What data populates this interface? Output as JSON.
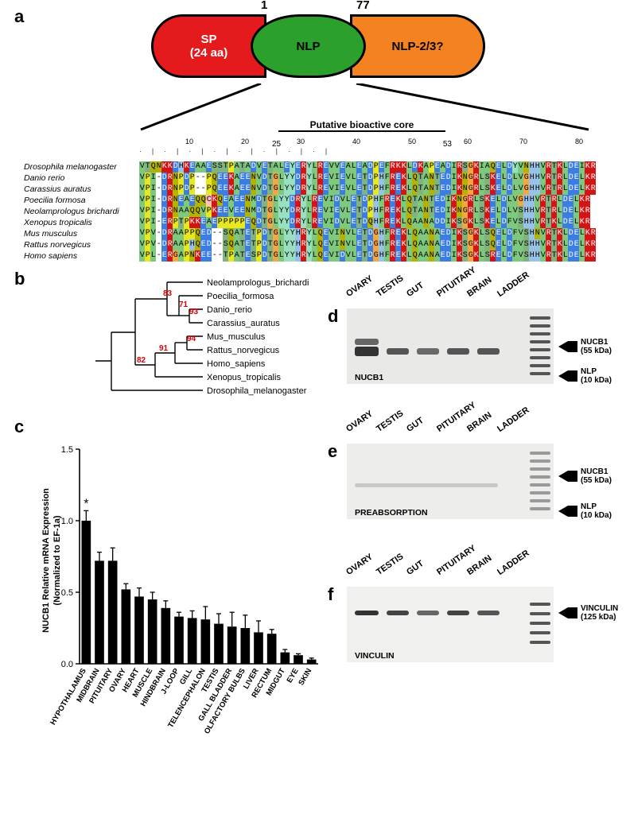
{
  "panel_a": {
    "label": "a",
    "segments": {
      "sp": {
        "title": "SP",
        "subtitle": "(24 aa)",
        "color": "#e41a1c"
      },
      "nlp": {
        "title": "NLP",
        "color": "#2ca02c"
      },
      "nlp23": {
        "title": "NLP-2/3?",
        "color": "#f58220"
      }
    },
    "positions": {
      "start": "1",
      "end": "77"
    },
    "bioactive": {
      "title": "Putative bioactive core",
      "start": "25",
      "end": "53"
    },
    "ruler": [
      10,
      20,
      30,
      40,
      50,
      60,
      70,
      80
    ],
    "species": [
      "Drosophila melanogaster",
      "Danio rerio",
      "Carassius auratus",
      "Poecilia formosa",
      "Neolamprologus brichardi",
      "Xenopus tropicalis",
      "Mus musculus",
      "Rattus norvegicus",
      "Homo sapiens"
    ],
    "sequences": [
      "VTQNKKDHKEAAESSTPATADVETALEYERYLREVVEALEADPEFRKKLDKAPEADIRSGKIAQELDYVNHHVRTKLDEIKR",
      "VPI-DRNPDP--PQEEKAEENVDTGLYYDRYLREVIEVLETDPHFREKLQTANTEDIKNGRLSKELDLVGHHVRTRLDELKR",
      "VPI-DRNPDP--PQEEKAEENVDTGLYYDRYLREVIEVLETDPHFREKLQTANTEDIKNGRLSKELDLVGHHVRTRLDELKR",
      "VPI-DRNEAEQQCKQEAEENMDTGLYYDRYLREVIDVLETDPHFREKLQTANTEDIKNGRLSKELDLVGHHVRTRLDELKR",
      "VPI-DRNAAQQVPKEEVEENMDTGLYYDRYLREVIEVLETDPHFREKLQTANTEDIKNGRLSKELDLVSHHVRTRLDELKR",
      "VPI-ERPTPKKEAEPPPPPEQDTGLYYDRYLREVIDVLETDQHFREKLQAANADDIKSGKLSKELDFVSHHVRTKLDELKR",
      "VPV-DRAAPPQED--SQATETPDTGLYYHRYLQEVINVLETDGHFREKLQAANAEDIKSGKLSQELDFVSHNVRTKLDELKR",
      "VPV-DRAAPHQED--SQATETPDTGLYYHRYLQEVINVLETDGHFREKLQAANAEDIKSGKLSQELDFVSHHVRTKLDELKR",
      "VPL-ERGAPNKEE--TPATESPDTGLYYHRYLQEVIDVLETDGHFREKLQAANAEDIKSGKLSRELDFVSHHVRTKLDELKR"
    ]
  },
  "panel_b": {
    "label": "b",
    "taxa": [
      "Neolamprologus_brichardi",
      "Poecilia_formosa",
      "Danio_rerio",
      "Carassius_auratus",
      "Mus_musculus",
      "Rattus_norvegicus",
      "Homo_sapiens",
      "Xenopus_tropicalis",
      "Drosophila_melanogaster"
    ],
    "bootstraps": {
      "n1": "83",
      "n2": "71",
      "n3": "93",
      "n4": "82",
      "n5": "91",
      "n6": "94"
    }
  },
  "panel_c": {
    "label": "c",
    "ylabel_line1": "NUCB1 Relative mRNA Expression",
    "ylabel_line2": "(Normalized to EF-1a)",
    "ylim": [
      0,
      1.5
    ],
    "ytick_step": 0.5,
    "categories": [
      "HYPOTHALAMUS",
      "MIDBRAIN",
      "PITUITARY",
      "OVARY",
      "HEART",
      "MUSCLE",
      "HINDBRAIN",
      "J-LOOP",
      "GILL",
      "TELENCEPHALON",
      "TESTIS",
      "GALL BLADDER",
      "OLFACTORY BULBS",
      "LIVER",
      "RECTUM",
      "MIDGUT",
      "EYE",
      "SKIN"
    ],
    "values": [
      1.0,
      0.72,
      0.72,
      0.52,
      0.47,
      0.45,
      0.39,
      0.33,
      0.32,
      0.31,
      0.28,
      0.26,
      0.25,
      0.22,
      0.21,
      0.08,
      0.06,
      0.03
    ],
    "errors": [
      0.07,
      0.06,
      0.09,
      0.04,
      0.06,
      0.05,
      0.05,
      0.03,
      0.05,
      0.09,
      0.07,
      0.1,
      0.09,
      0.08,
      0.03,
      0.02,
      0.01,
      0.01
    ],
    "significance": {
      "index": 0,
      "symbol": "*"
    }
  },
  "westerns": {
    "tissue_labels": [
      "OVARY",
      "TESTIS",
      "GUT",
      "PITUITARY",
      "BRAIN",
      "LADDER"
    ],
    "panel_d": {
      "label": "d",
      "caption": "NUCB1",
      "arrows": [
        {
          "text1": "NUCB1",
          "text2": "(55 kDa)"
        },
        {
          "text1": "NLP",
          "text2": "(10 kDa)"
        }
      ]
    },
    "panel_e": {
      "label": "e",
      "caption": "PREABSORPTION",
      "arrows": [
        {
          "text1": "NUCB1",
          "text2": "(55 kDa)"
        },
        {
          "text1": "NLP",
          "text2": "(10 kDa)"
        }
      ]
    },
    "panel_f": {
      "label": "f",
      "caption": "VINCULIN",
      "arrows": [
        {
          "text1": "VINCULIN",
          "text2": "(125 kDa)"
        }
      ]
    }
  }
}
